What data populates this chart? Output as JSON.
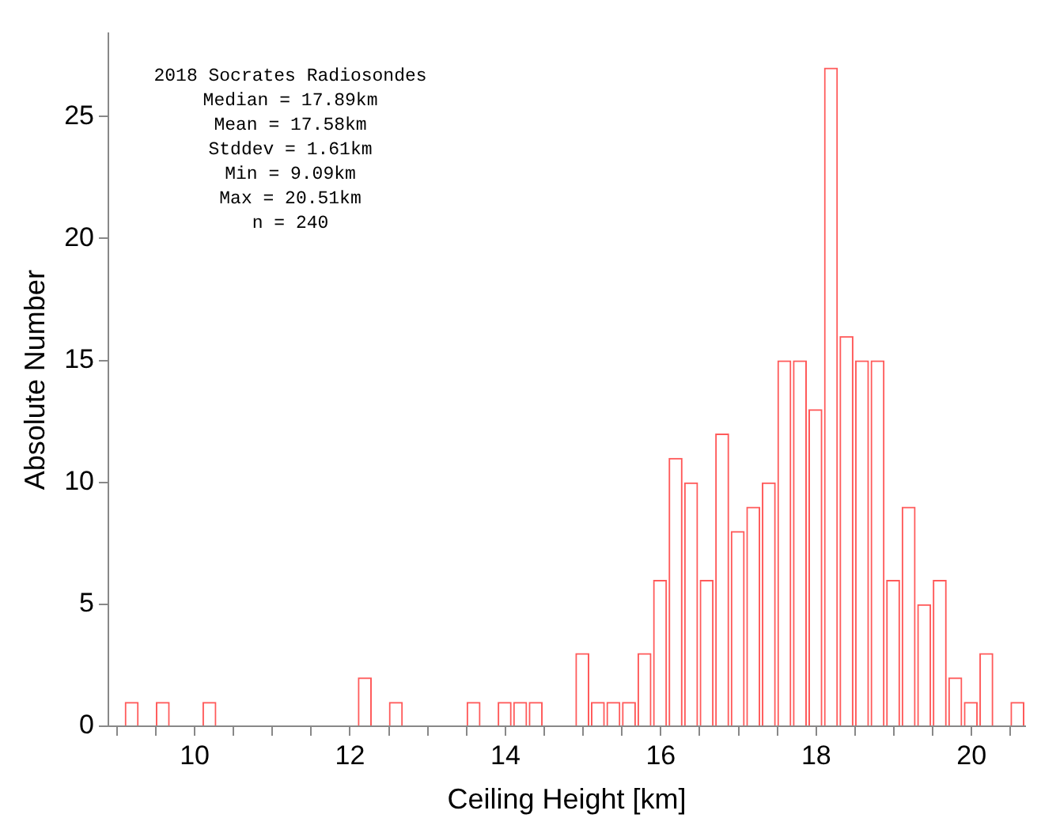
{
  "chart_data": {
    "type": "histogram",
    "bins": [
      9.09,
      9.29,
      9.49,
      9.69,
      9.89,
      10.09,
      10.29,
      10.49,
      10.69,
      10.89,
      11.09,
      11.29,
      11.49,
      11.69,
      11.89,
      12.09,
      12.29,
      12.49,
      12.69,
      12.89,
      13.09,
      13.29,
      13.49,
      13.69,
      13.89,
      14.09,
      14.29,
      14.49,
      14.69,
      14.89,
      15.09,
      15.29,
      15.49,
      15.69,
      15.89,
      16.09,
      16.29,
      16.49,
      16.69,
      16.89,
      17.09,
      17.29,
      17.49,
      17.69,
      17.89,
      18.09,
      18.29,
      18.49,
      18.69,
      18.89,
      19.09,
      19.29,
      19.49,
      19.69,
      19.89,
      20.09,
      20.29,
      20.49,
      20.69
    ],
    "values": [
      1,
      0,
      1,
      0,
      0,
      1,
      0,
      0,
      0,
      0,
      0,
      0,
      0,
      0,
      0,
      2,
      0,
      1,
      0,
      0,
      0,
      0,
      1,
      0,
      1,
      1,
      1,
      0,
      0,
      3,
      1,
      1,
      1,
      3,
      6,
      11,
      10,
      6,
      12,
      8,
      9,
      10,
      15,
      15,
      13,
      27,
      16,
      15,
      15,
      6,
      9,
      5,
      6,
      2,
      1,
      3,
      0,
      1
    ],
    "color": "#ff5a5a",
    "xlabel": "Ceiling Height [km]",
    "ylabel": "Absolute Number",
    "xlim": [
      8.89,
      20.69
    ],
    "xticks": [
      {
        "value": 9,
        "label": null
      },
      {
        "value": 9.5,
        "label": null
      },
      10,
      {
        "value": 10.5,
        "label": null
      },
      {
        "value": 11,
        "label": null
      },
      {
        "value": 11.5,
        "label": null
      },
      12,
      {
        "value": 12.5,
        "label": null
      },
      {
        "value": 13,
        "label": null
      },
      {
        "value": 13.5,
        "label": null
      },
      14,
      {
        "value": 14.5,
        "label": null
      },
      {
        "value": 15,
        "label": null
      },
      {
        "value": 15.5,
        "label": null
      },
      16,
      {
        "value": 16.5,
        "label": null
      },
      {
        "value": 17,
        "label": null
      },
      {
        "value": 17.5,
        "label": null
      },
      18,
      {
        "value": 18.5,
        "label": null
      },
      {
        "value": 19,
        "label": null
      },
      {
        "value": 19.5,
        "label": null
      },
      20,
      {
        "value": 20.5,
        "label": null
      }
    ],
    "ylim": [
      0,
      28.4
    ],
    "yticks": [
      0,
      5,
      10,
      15,
      20,
      25
    ],
    "grid": false,
    "legend": false,
    "annotations": [
      "2018 Socrates Radiosondes",
      "Median = 17.89km",
      "Mean = 17.58km",
      "Stddev = 1.61km",
      "Min = 9.09km",
      "Max = 20.51km",
      "n = 240"
    ]
  }
}
